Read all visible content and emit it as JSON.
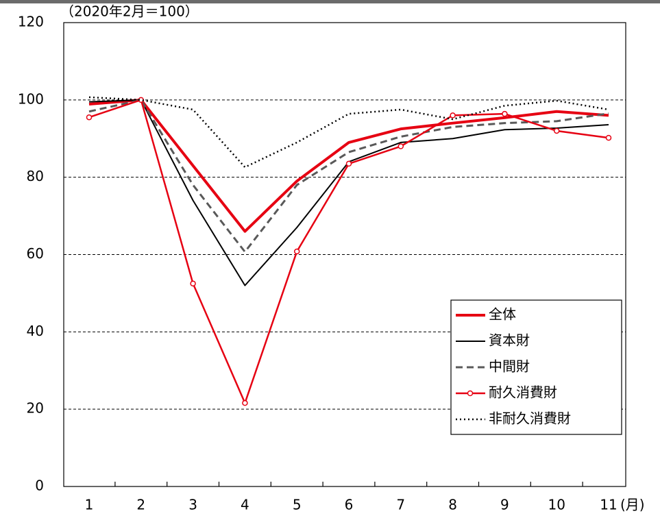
{
  "chart_data": {
    "type": "line",
    "title": "（2020年2月＝100）",
    "x_label": "(月)",
    "categories": [
      "1",
      "2",
      "3",
      "4",
      "5",
      "6",
      "7",
      "8",
      "9",
      "10",
      "11"
    ],
    "ylim": [
      0,
      120
    ],
    "yticks": [
      0,
      20,
      40,
      60,
      80,
      100,
      120
    ],
    "grid": true,
    "legend": "lower right",
    "series": [
      {
        "name": "全体",
        "color": "#e60012",
        "linestyle": "solid",
        "linewidth": 4,
        "marker": false,
        "values": [
          98.9,
          100,
          83,
          66,
          79,
          89,
          92.5,
          94,
          95.4,
          97,
          96
        ]
      },
      {
        "name": "資本財",
        "color": "#000000",
        "linestyle": "solid",
        "linewidth": 2,
        "marker": false,
        "values": [
          99.5,
          100,
          74,
          52,
          67,
          84,
          89,
          90,
          92.3,
          92.7,
          93.6
        ]
      },
      {
        "name": "中間財",
        "color": "#595959",
        "linestyle": "dashed",
        "linewidth": 3,
        "marker": false,
        "values": [
          97,
          100,
          78,
          60.7,
          78,
          86.5,
          90.5,
          93,
          94,
          94.5,
          96.5
        ]
      },
      {
        "name": "耐久消費財",
        "color": "#e60012",
        "linestyle": "solid",
        "linewidth": 2.5,
        "marker": true,
        "values": [
          95.5,
          100,
          52.5,
          21.6,
          60.8,
          83.5,
          88,
          96,
          96.4,
          92,
          90.2
        ]
      },
      {
        "name": "非耐久消費財",
        "color": "#000000",
        "linestyle": "dotted",
        "linewidth": 2.5,
        "marker": false,
        "values": [
          100.7,
          100,
          97.5,
          82.6,
          89,
          96.4,
          97.5,
          95,
          98.5,
          99.8,
          97.5
        ]
      }
    ]
  }
}
